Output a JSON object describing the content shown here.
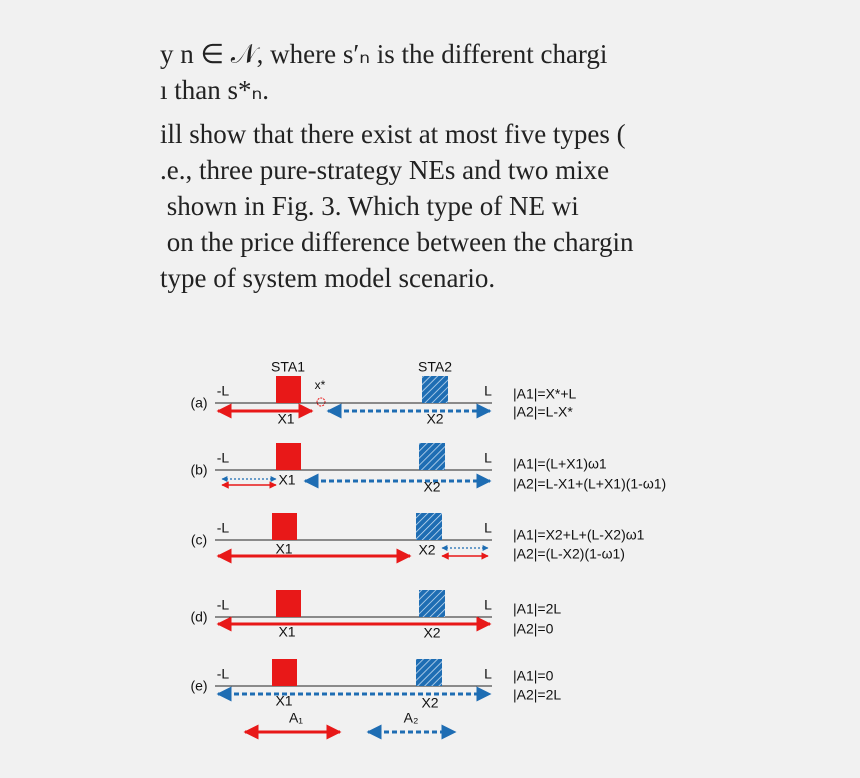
{
  "body": {
    "lines": [
      "y n ∈ 𝒩, where s′ₙ is the different chargi",
      "ı than s*ₙ.",
      "ill show that there exist at most five types (",
      ".e., three pure-strategy NEs and two mixe",
      " shown in Fig. 3. Which type of NE wi",
      " on the price difference between the chargin",
      "type of system model scenario."
    ]
  },
  "diagram": {
    "sta1": "STA1",
    "sta2": "STA2",
    "xstar": "x*",
    "rows": [
      {
        "tag": "(a)",
        "left": "-L",
        "right": "L",
        "x1": "X1",
        "x2": "X2",
        "eq1": "|A1|=X*+L",
        "eq2": "|A2|=L-X*"
      },
      {
        "tag": "(b)",
        "left": "-L",
        "right": "L",
        "x1": "X1",
        "x2": "X2",
        "eq1": "|A1|=(L+X1)ω1",
        "eq2": "|A2|=L-X1+(L+X1)(1-ω1)"
      },
      {
        "tag": "(c)",
        "left": "-L",
        "right": "L",
        "x1": "X1",
        "x2": "X2",
        "eq1": "|A1|=X2+L+(L-X2)ω1",
        "eq2": "|A2|=(L-X2)(1-ω1)"
      },
      {
        "tag": "(d)",
        "left": "-L",
        "right": "L",
        "x1": "X1",
        "x2": "X2",
        "eq1": "|A1|=2L",
        "eq2": "|A2|=0"
      },
      {
        "tag": "(e)",
        "left": "-L",
        "right": "L",
        "x1": "X1",
        "x2": "X2",
        "eq1": "|A1|=0",
        "eq2": "|A2|=2L"
      }
    ],
    "legend": {
      "a1": "A₁",
      "a2": "A₂"
    }
  }
}
